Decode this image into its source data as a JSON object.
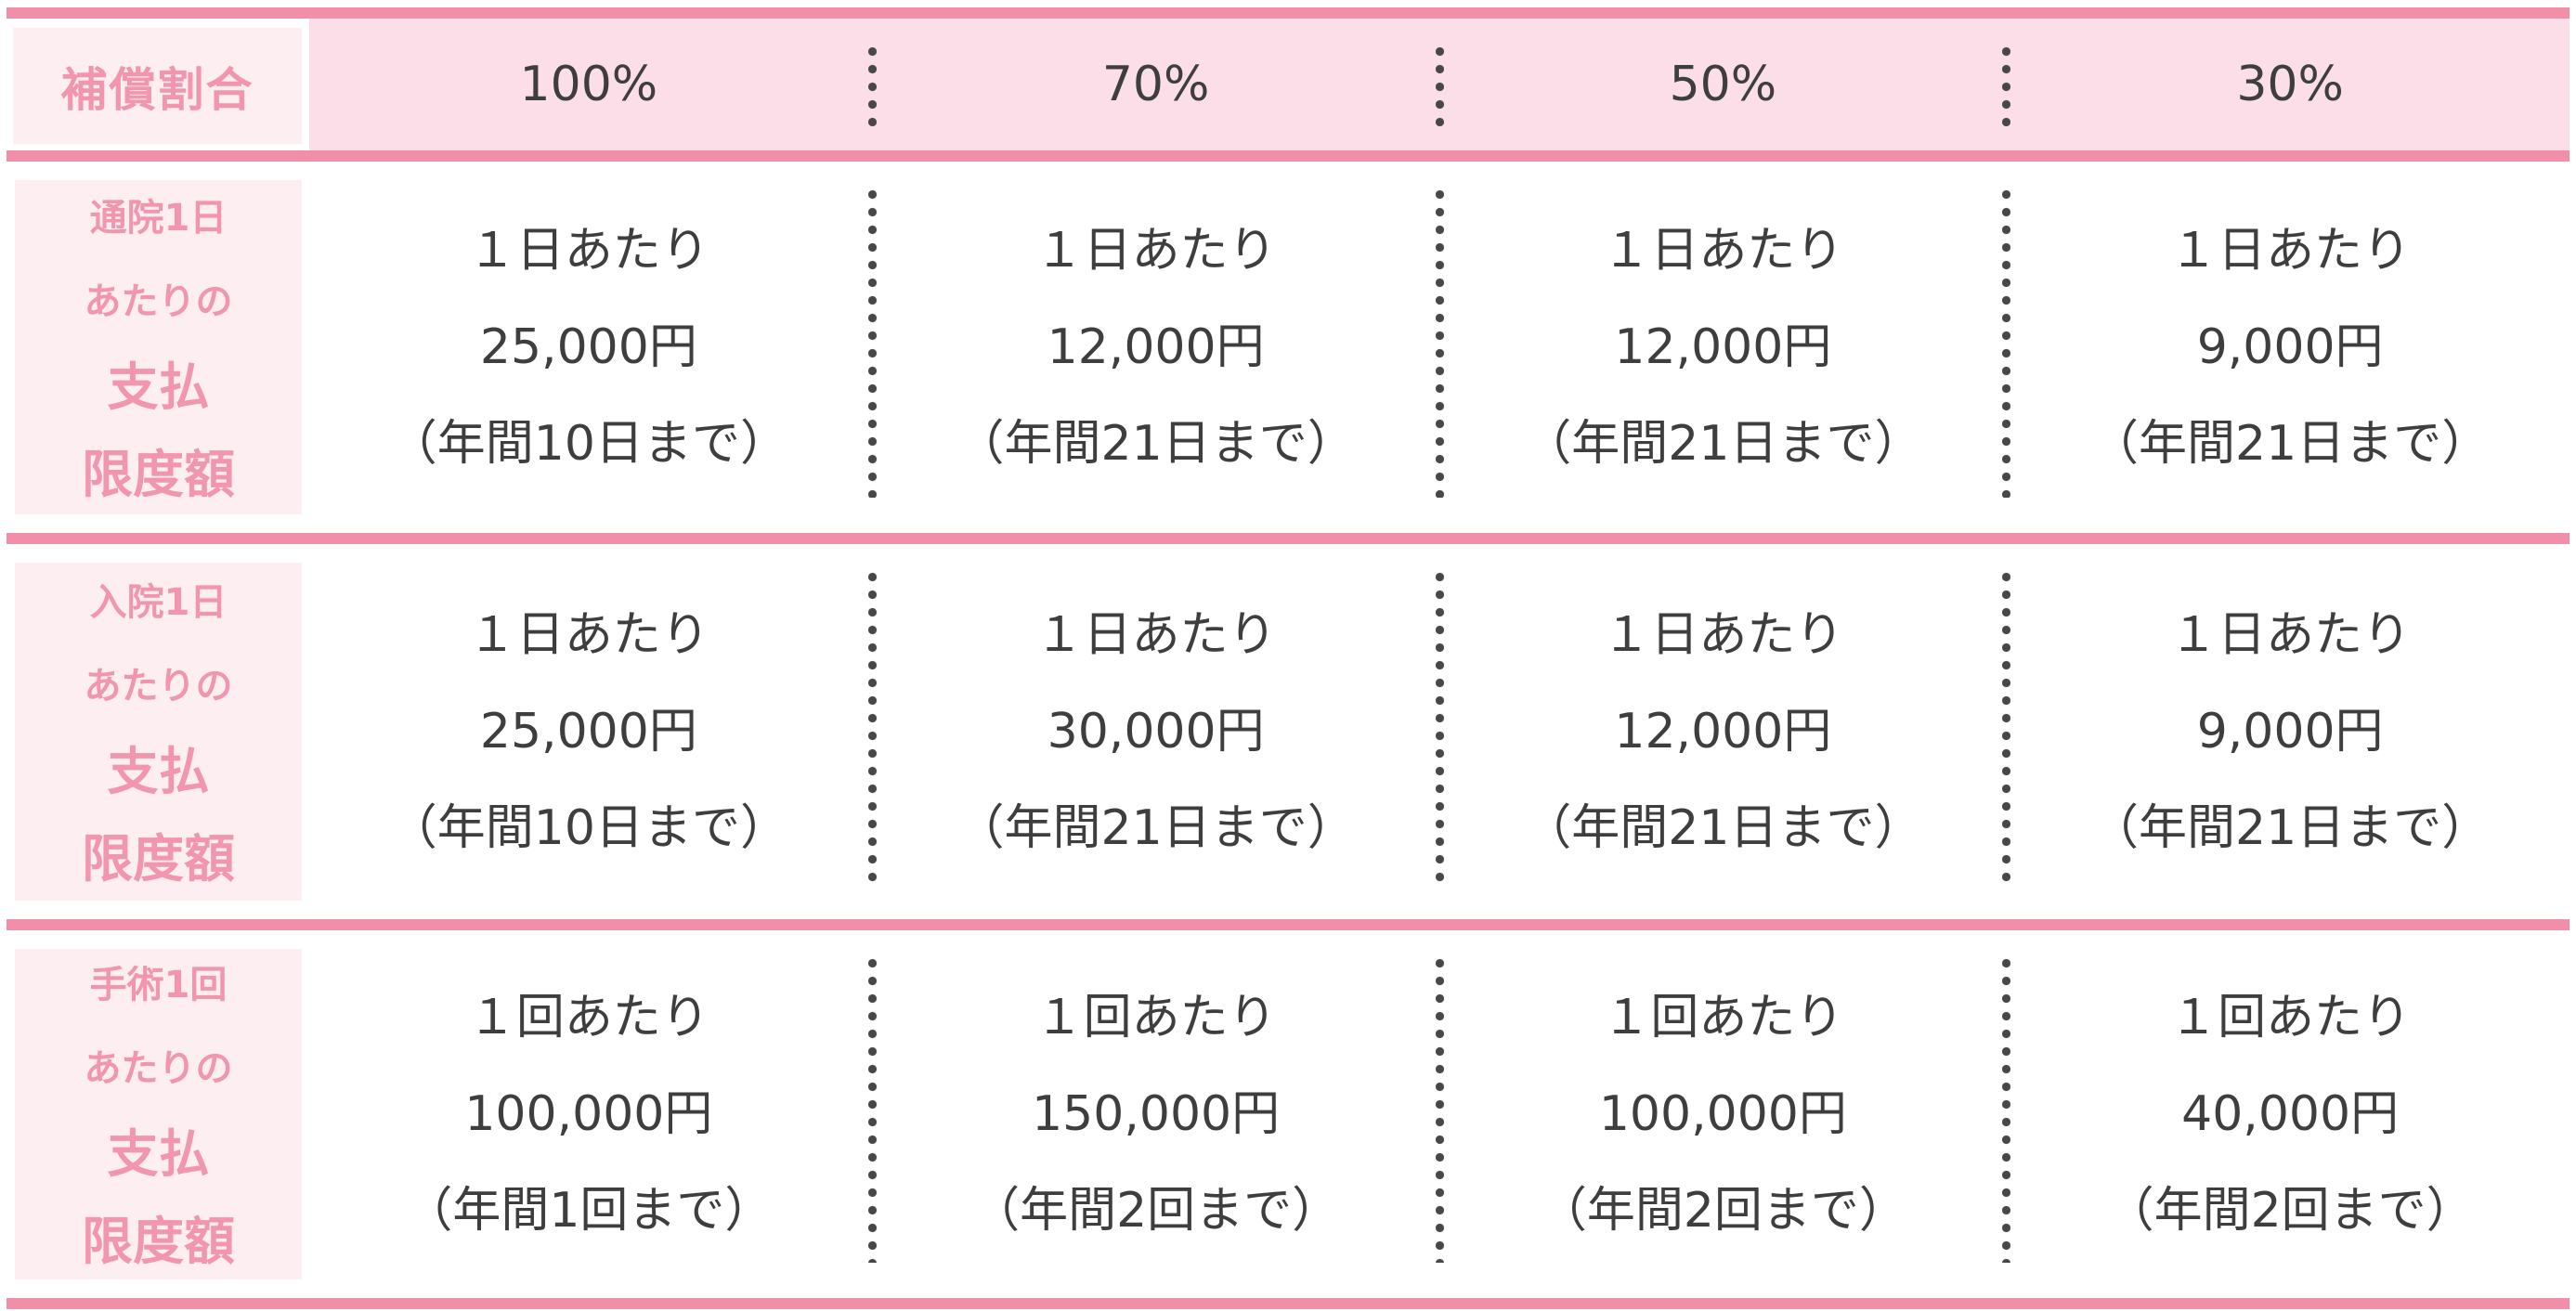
{
  "header": {
    "corner": "補償割合",
    "columns": [
      "100%",
      "70%",
      "50%",
      "30%"
    ]
  },
  "rows": [
    {
      "label_small": [
        "通院1日",
        "あたりの"
      ],
      "label_big": [
        "支払",
        "限度額"
      ],
      "cells": [
        {
          "lines": [
            "１日あたり",
            "25,000円",
            "（年間10日まで）"
          ]
        },
        {
          "lines": [
            "１日あたり",
            "12,000円",
            "（年間21日まで）"
          ]
        },
        {
          "lines": [
            "１日あたり",
            "12,000円",
            "（年間21日まで）"
          ]
        },
        {
          "lines": [
            "１日あたり",
            "9,000円",
            "（年間21日まで）"
          ]
        }
      ]
    },
    {
      "label_small": [
        "入院1日",
        "あたりの"
      ],
      "label_big": [
        "支払",
        "限度額"
      ],
      "cells": [
        {
          "lines": [
            "１日あたり",
            "25,000円",
            "（年間10日まで）"
          ]
        },
        {
          "lines": [
            "１日あたり",
            "30,000円",
            "（年間21日まで）"
          ]
        },
        {
          "lines": [
            "１日あたり",
            "12,000円",
            "（年間21日まで）"
          ]
        },
        {
          "lines": [
            "１日あたり",
            "9,000円",
            "（年間21日まで）"
          ]
        }
      ]
    },
    {
      "label_small": [
        "手術1回",
        "あたりの"
      ],
      "label_big": [
        "支払",
        "限度額"
      ],
      "cells": [
        {
          "lines": [
            "１回あたり",
            "100,000円",
            "（年間1回まで）"
          ]
        },
        {
          "lines": [
            "１回あたり",
            "150,000円",
            "（年間2回まで）"
          ]
        },
        {
          "lines": [
            "１回あたり",
            "100,000円",
            "（年間2回まで）"
          ]
        },
        {
          "lines": [
            "１回あたり",
            "40,000円",
            "（年間2回まで）"
          ]
        }
      ]
    }
  ],
  "colors": {
    "accent_bar": "#F18FA9",
    "header_strip_bg": "#FBDEE7",
    "label_cell_bg": "#FDEEF2",
    "label_text": "#F295AE",
    "body_text": "#3E3E3E",
    "dot": "#474747"
  }
}
